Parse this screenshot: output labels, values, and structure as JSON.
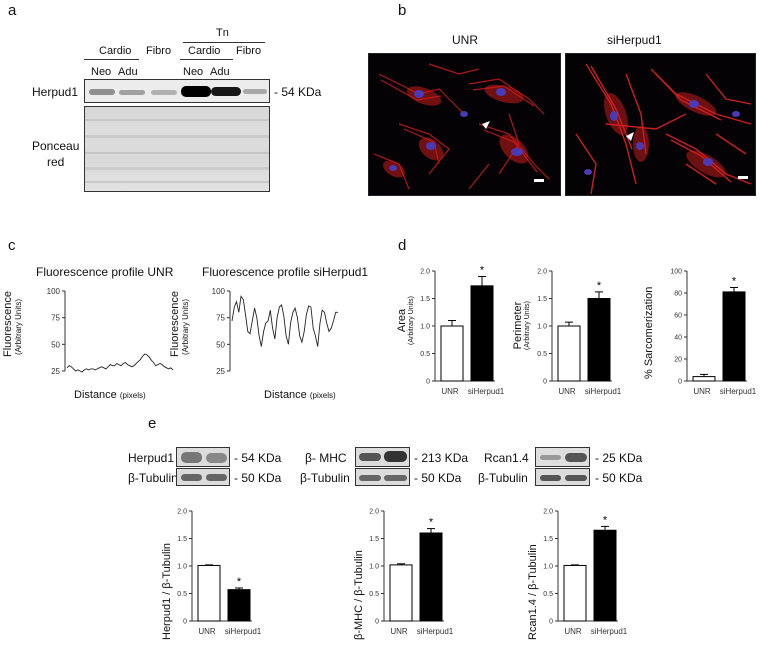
{
  "panel_letters": {
    "a": "a",
    "b": "b",
    "c": "c",
    "d": "d",
    "e": "e"
  },
  "panel_a": {
    "tn_header": "Tn",
    "groups": {
      "cardio1": "Cardio",
      "fibro1": "Fibro",
      "cardio2": "Cardio",
      "fibro2": "Fibro"
    },
    "subgroups": {
      "neo1": "Neo",
      "adu1": "Adu",
      "neo2": "Neo",
      "adu2": "Adu"
    },
    "row_herpud1": "Herpud1",
    "row_ponceau1": "Ponceau",
    "row_ponceau2": "red",
    "mw": "- 54 KDa",
    "herpud1_band_intensity": [
      0.55,
      0.45,
      0.35,
      1.0,
      0.95,
      0.4
    ]
  },
  "panel_b": {
    "left_title": "UNR",
    "right_title": "siHerpud1"
  },
  "panel_c": {
    "left_title": "Fluorescence profile UNR",
    "right_title": "Fluorescence profile siHerpud1",
    "ylabel": "Fluorescence",
    "ylabel_units": "(Arbitrary Units)",
    "xlabel": "Distance",
    "xlabel_units": "(pixels)"
  },
  "panel_d_labels": {
    "area": "Area",
    "perimeter": "Perimeter",
    "units": "(Arbitrary Units)",
    "sarc": "% Sarcomerization"
  },
  "panel_e": {
    "blots": [
      {
        "label": "Herpud1",
        "mw": "- 54 KDa",
        "loading": "β-Tubulin",
        "loading_mw": "- 50 KDa"
      },
      {
        "label": "β- MHC",
        "mw": "- 213 KDa",
        "loading": "β-Tubulin",
        "loading_mw": "- 50 KDa"
      },
      {
        "label": "Rcan1.4",
        "mw": "- 25 KDa",
        "loading": "β-Tubulin",
        "loading_mw": "- 50 KDa"
      }
    ]
  },
  "chart_data": [
    {
      "type": "line",
      "title": "Fluorescence profile UNR",
      "xlabel": "Distance (pixels)",
      "ylabel": "Fluorescence (Arbitrary Units)",
      "ylim": [
        25,
        100
      ],
      "yticks": [
        25,
        50,
        75,
        100
      ],
      "series": [
        {
          "values": [
            28,
            30,
            29,
            27,
            25,
            26,
            25,
            24,
            26,
            27,
            26,
            27,
            27,
            26,
            27,
            28,
            29,
            28,
            27,
            29,
            31,
            30,
            30,
            32,
            31,
            30,
            32,
            33,
            31,
            30,
            29,
            30,
            32,
            34,
            36,
            39,
            41,
            40,
            38,
            35,
            33,
            30,
            31,
            32,
            31,
            29,
            28,
            27,
            28,
            26
          ]
        }
      ]
    },
    {
      "type": "line",
      "title": "Fluorescence profile siHerpud1",
      "xlabel": "Distance (pixels)",
      "ylabel": "Fluorescence (Arbitrary Units)",
      "ylim": [
        25,
        100
      ],
      "yticks": [
        25,
        50,
        75,
        100
      ],
      "series": [
        {
          "values": [
            72,
            85,
            90,
            80,
            95,
            92,
            78,
            62,
            60,
            72,
            84,
            75,
            58,
            48,
            62,
            70,
            72,
            82,
            65,
            55,
            75,
            85,
            87,
            76,
            58,
            50,
            70,
            80,
            84,
            75,
            58,
            52,
            62,
            78,
            86,
            85,
            65,
            58,
            48,
            70,
            82,
            80,
            70,
            62,
            65,
            72,
            80,
            80
          ]
        }
      ]
    },
    {
      "type": "bar",
      "categories": [
        "UNR",
        "siHerpud1"
      ],
      "values": [
        1.0,
        1.73
      ],
      "errors": [
        0.1,
        0.17
      ],
      "ylabel": "Area (Arbitrary Units)",
      "ylim": [
        0,
        2.0
      ],
      "yticks": [
        0,
        0.5,
        1.0,
        1.5,
        2.0
      ],
      "significance": [
        "",
        "*"
      ]
    },
    {
      "type": "bar",
      "categories": [
        "UNR",
        "siHerpud1"
      ],
      "values": [
        1.0,
        1.5
      ],
      "errors": [
        0.07,
        0.12
      ],
      "ylabel": "Perimeter (Arbitrary Units)",
      "ylim": [
        0,
        2.0
      ],
      "yticks": [
        0,
        0.5,
        1.0,
        1.5,
        2.0
      ],
      "significance": [
        "",
        "*"
      ]
    },
    {
      "type": "bar",
      "categories": [
        "UNR",
        "siHerpud1"
      ],
      "values": [
        4,
        81
      ],
      "errors": [
        2,
        4
      ],
      "ylabel": "% Sarcomerization",
      "ylim": [
        0,
        100
      ],
      "yticks": [
        0,
        20,
        40,
        60,
        80,
        100
      ],
      "significance": [
        "",
        "*"
      ]
    },
    {
      "type": "bar",
      "categories": [
        "UNR",
        "siHerpud1"
      ],
      "values": [
        1.01,
        0.57
      ],
      "errors": [
        0.01,
        0.03
      ],
      "ylabel": "Herpud1 / β-Tubulin",
      "ylim": [
        0,
        2.0
      ],
      "yticks": [
        0,
        0.5,
        1.0,
        1.5,
        2.0
      ],
      "significance": [
        "",
        "*"
      ]
    },
    {
      "type": "bar",
      "categories": [
        "UNR",
        "siHerpud1"
      ],
      "values": [
        1.02,
        1.6
      ],
      "errors": [
        0.02,
        0.08
      ],
      "ylabel": "β-MHC / β-Tubulin",
      "ylim": [
        0,
        2.0
      ],
      "yticks": [
        0,
        0.5,
        1.0,
        1.5,
        2.0
      ],
      "significance": [
        "",
        "*"
      ]
    },
    {
      "type": "bar",
      "categories": [
        "UNR",
        "siHerpud1"
      ],
      "values": [
        1.01,
        1.65
      ],
      "errors": [
        0.01,
        0.07
      ],
      "ylabel": "Rcan1.4 / β-Tubulin",
      "ylim": [
        0,
        2.0
      ],
      "yticks": [
        0,
        0.5,
        1.0,
        1.5,
        2.0
      ],
      "significance": [
        "",
        "*"
      ]
    }
  ]
}
